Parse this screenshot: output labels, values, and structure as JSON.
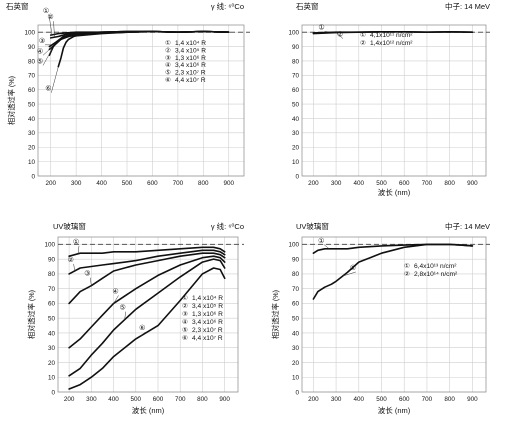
{
  "chart_data": [
    {
      "type": "line",
      "panel": "top-left",
      "title": "石英窗",
      "subtitle": "γ 线: ⁶⁰Co",
      "xlabel": "",
      "ylabel": "相对透过率 (%)",
      "xlim": [
        150,
        960
      ],
      "ylim": [
        0,
        105
      ],
      "xticks": [
        "200",
        "300",
        "400",
        "500",
        "600",
        "700",
        "800",
        "900"
      ],
      "yticks": [
        "0",
        "10",
        "20",
        "30",
        "40",
        "50",
        "60",
        "70",
        "80",
        "90",
        "100"
      ],
      "reference_line": 100,
      "legend_position": "right",
      "series": [
        {
          "marker": "①",
          "name": "1,4 x10⁴ R",
          "x": [
            200,
            230,
            260,
            300,
            400,
            500,
            600,
            700,
            800,
            900
          ],
          "y": [
            98,
            99,
            99.5,
            100,
            100,
            100.5,
            100.5,
            100,
            100.5,
            100
          ]
        },
        {
          "marker": "②",
          "name": "3,4 x10⁵ R",
          "x": [
            200,
            230,
            260,
            300,
            400,
            500,
            600,
            700,
            800,
            900
          ],
          "y": [
            96,
            97,
            98.5,
            99.5,
            100,
            100.5,
            100.5,
            100,
            100.5,
            100
          ]
        },
        {
          "marker": "③",
          "name": "1,3 x10⁶ R",
          "x": [
            195,
            220,
            250,
            300,
            400,
            500,
            600,
            700,
            800,
            900
          ],
          "y": [
            90,
            93,
            97,
            99,
            100,
            100.5,
            100.5,
            100,
            100.5,
            100
          ]
        },
        {
          "marker": "④",
          "name": "3,4 x10⁶ R",
          "x": [
            195,
            215,
            240,
            270,
            300,
            400,
            500,
            600,
            700,
            800,
            900
          ],
          "y": [
            88,
            91,
            95,
            97,
            98.5,
            99.5,
            100,
            100.5,
            100,
            100.5,
            100
          ]
        },
        {
          "marker": "⑤",
          "name": "2,3 x10⁷ R",
          "x": [
            195,
            210,
            230,
            250,
            270,
            300,
            400,
            500,
            600,
            700,
            800,
            900
          ],
          "y": [
            84,
            90,
            94,
            96,
            97,
            98,
            99.5,
            100,
            100.5,
            100,
            100.5,
            100
          ]
        },
        {
          "marker": "⑥",
          "name": "4,4 x10⁷ R",
          "x": [
            230,
            240,
            250,
            260,
            270,
            290,
            300,
            400,
            500,
            600,
            700,
            800,
            900
          ],
          "y": [
            76,
            82,
            89,
            93,
            95,
            97,
            97.5,
            99,
            100,
            100.5,
            100,
            100.5,
            100
          ]
        }
      ]
    },
    {
      "type": "line",
      "panel": "top-right",
      "title": "石英窗",
      "subtitle": "中子: 14 MeV",
      "xlabel": "波长 (nm)",
      "ylabel": "",
      "xlim": [
        150,
        960
      ],
      "ylim": [
        0,
        105
      ],
      "xticks": [
        "200",
        "300",
        "400",
        "500",
        "600",
        "700",
        "800",
        "900"
      ],
      "yticks": [
        "0",
        "10",
        "20",
        "30",
        "40",
        "50",
        "60",
        "70",
        "80",
        "90",
        "100"
      ],
      "reference_line": 100,
      "legend_position": "right",
      "series": [
        {
          "marker": "①",
          "name": "4,1x10¹¹ n/cm²",
          "x": [
            200,
            250,
            300,
            400,
            500,
            600,
            700,
            800,
            900
          ],
          "y": [
            99.5,
            99.8,
            100,
            100,
            100.3,
            100.3,
            100,
            100.3,
            100
          ]
        },
        {
          "marker": "②",
          "name": "1,4x10¹² n/cm²",
          "x": [
            200,
            250,
            300,
            400,
            500,
            600,
            700,
            800,
            900
          ],
          "y": [
            99,
            99.4,
            99.7,
            100,
            100.3,
            100.3,
            100,
            100.3,
            100
          ]
        }
      ]
    },
    {
      "type": "line",
      "panel": "bottom-left",
      "title": "UV玻璃窗",
      "subtitle": "γ 线: ⁶⁰Co",
      "xlabel": "波长 (nm)",
      "ylabel": "相对透过率 (%)",
      "xlim": [
        150,
        960
      ],
      "ylim": [
        0,
        105
      ],
      "xticks": [
        "200",
        "300",
        "400",
        "500",
        "600",
        "700",
        "800",
        "900"
      ],
      "yticks": [
        "0",
        "10",
        "20",
        "30",
        "40",
        "50",
        "60",
        "70",
        "80",
        "90",
        "100"
      ],
      "reference_line": 100,
      "legend_position": "right",
      "series": [
        {
          "marker": "①",
          "name": "1,4 x10⁴ R",
          "x": [
            200,
            250,
            300,
            350,
            400,
            500,
            600,
            700,
            800,
            850,
            880,
            900
          ],
          "y": [
            92,
            94,
            94,
            94,
            95,
            95,
            96,
            97,
            98,
            98,
            97,
            95
          ]
        },
        {
          "marker": "②",
          "name": "3,4 x10⁵ R",
          "x": [
            200,
            250,
            300,
            350,
            400,
            500,
            600,
            700,
            800,
            850,
            880,
            900
          ],
          "y": [
            80,
            84,
            85,
            86,
            87,
            89,
            92,
            94,
            96,
            96,
            95,
            93
          ]
        },
        {
          "marker": "③",
          "name": "1,3 x10⁶ R",
          "x": [
            200,
            250,
            300,
            350,
            400,
            500,
            600,
            700,
            800,
            850,
            880,
            900
          ],
          "y": [
            60,
            68,
            72,
            77,
            82,
            86,
            89,
            92,
            94,
            94,
            93,
            91
          ]
        },
        {
          "marker": "④",
          "name": "3,4 x10⁶ R",
          "x": [
            200,
            250,
            300,
            350,
            400,
            500,
            600,
            700,
            800,
            850,
            880,
            900
          ],
          "y": [
            30,
            36,
            44,
            52,
            60,
            70,
            79,
            86,
            91,
            92,
            91,
            88
          ]
        },
        {
          "marker": "⑤",
          "name": "2,3 x10⁷ R",
          "x": [
            200,
            250,
            300,
            350,
            400,
            500,
            600,
            700,
            800,
            850,
            880,
            900
          ],
          "y": [
            11,
            16,
            25,
            33,
            42,
            56,
            67,
            78,
            88,
            90,
            89,
            84
          ]
        },
        {
          "marker": "⑥",
          "name": "4,4 x10⁷ R",
          "x": [
            200,
            250,
            300,
            350,
            400,
            500,
            600,
            700,
            800,
            850,
            880,
            900
          ],
          "y": [
            2,
            5,
            10,
            16,
            24,
            36,
            45,
            62,
            80,
            84,
            83,
            77
          ]
        }
      ]
    },
    {
      "type": "line",
      "panel": "bottom-right",
      "title": "UV玻璃窗",
      "subtitle": "中子: 14 MeV",
      "xlabel": "波长 (nm)",
      "ylabel": "相对透过率 (%)",
      "xlim": [
        150,
        960
      ],
      "ylim": [
        0,
        105
      ],
      "xticks": [
        "200",
        "300",
        "400",
        "500",
        "600",
        "700",
        "800",
        "900"
      ],
      "yticks": [
        "0",
        "10",
        "20",
        "30",
        "40",
        "50",
        "60",
        "70",
        "80",
        "90",
        "100"
      ],
      "reference_line": 100,
      "legend_position": "right",
      "series": [
        {
          "marker": "①",
          "name": "6,4x10¹³ n/cm²",
          "x": [
            200,
            220,
            250,
            300,
            350,
            400,
            500,
            600,
            700,
            800,
            850,
            900
          ],
          "y": [
            94,
            96,
            97,
            97,
            97,
            98,
            99,
            99.5,
            100,
            100,
            99.5,
            99
          ]
        },
        {
          "marker": "②",
          "name": "2,8x10¹⁴ n/cm²",
          "x": [
            200,
            220,
            250,
            280,
            300,
            350,
            400,
            450,
            500,
            600,
            700,
            800,
            850,
            900
          ],
          "y": [
            63,
            68,
            71,
            73,
            75,
            81,
            88,
            91,
            94,
            98,
            100,
            100,
            99.5,
            99
          ]
        }
      ]
    }
  ]
}
